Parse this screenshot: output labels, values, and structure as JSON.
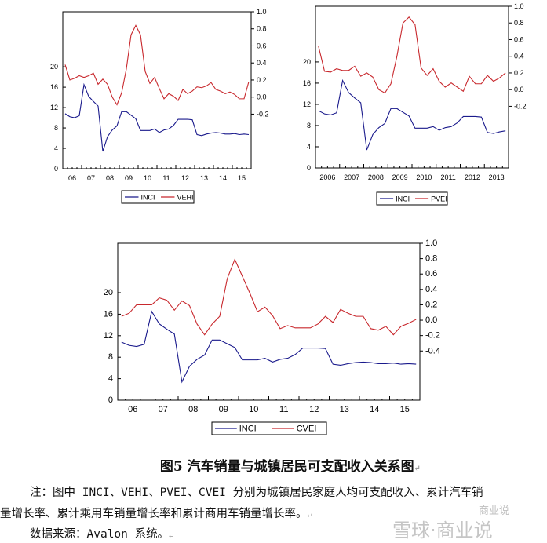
{
  "colors": {
    "inci": "#1a1a8c",
    "other": "#c8282d"
  },
  "chart_data": [
    {
      "type": "line",
      "x_start": "2006Q1",
      "frequency": "quarterly",
      "xtick_labels": [
        "06",
        "07",
        "08",
        "09",
        "10",
        "11",
        "12",
        "13",
        "14",
        "15"
      ],
      "left_ylim": [
        0,
        30.8
      ],
      "left_ticks": [
        "0",
        "4",
        "8",
        "12",
        "16",
        "20"
      ],
      "right_ylim": [
        -0.84,
        1.0
      ],
      "right_ticks": [
        "-0.2",
        "0.0",
        "0.2",
        "0.4",
        "0.6",
        "0.8",
        "1.0"
      ],
      "legend_placement": "bottom",
      "grid": false,
      "series": [
        {
          "name": "INCI",
          "axis": "left",
          "values": [
            10.8,
            10.2,
            10.0,
            10.4,
            16.5,
            14.2,
            13.2,
            12.3,
            3.4,
            6.3,
            7.6,
            8.4,
            11.2,
            11.2,
            10.5,
            9.8,
            7.5,
            7.5,
            7.5,
            7.8,
            7.1,
            7.6,
            7.8,
            8.5,
            9.7,
            9.7,
            9.7,
            9.6,
            6.7,
            6.5,
            6.8,
            7.0,
            7.1,
            7.0,
            6.8,
            6.8,
            6.9,
            6.7,
            6.8,
            6.7
          ]
        },
        {
          "name": "VEHI",
          "axis": "right",
          "values": [
            0.38,
            0.2,
            0.22,
            0.25,
            0.23,
            0.25,
            0.28,
            0.15,
            0.21,
            0.15,
            0.0,
            -0.09,
            0.05,
            0.33,
            0.73,
            0.84,
            0.73,
            0.3,
            0.16,
            0.23,
            0.1,
            -0.02,
            0.04,
            0.01,
            -0.04,
            0.09,
            0.04,
            0.07,
            0.12,
            0.11,
            0.13,
            0.17,
            0.09,
            0.07,
            0.04,
            0.06,
            0.03,
            -0.02,
            -0.02,
            0.18
          ]
        }
      ]
    },
    {
      "type": "line",
      "x_start": "2006Q1",
      "frequency": "quarterly",
      "xtick_labels": [
        "2006",
        "2007",
        "2008",
        "2009",
        "2010",
        "2011",
        "2012",
        "2013"
      ],
      "left_ylim": [
        0,
        30.5
      ],
      "left_ticks": [
        "0",
        "4",
        "8",
        "12",
        "16",
        "20"
      ],
      "right_ylim": [
        -0.94,
        1.0
      ],
      "right_ticks": [
        "-0.2",
        "0.0",
        "0.2",
        "0.4",
        "0.6",
        "0.8",
        "1.0"
      ],
      "legend_placement": "bottom",
      "grid": false,
      "series": [
        {
          "name": "INCI",
          "axis": "left",
          "values": [
            10.8,
            10.2,
            10.0,
            10.4,
            16.5,
            14.2,
            13.2,
            12.3,
            3.4,
            6.3,
            7.6,
            8.4,
            11.2,
            11.2,
            10.5,
            9.8,
            7.5,
            7.5,
            7.5,
            7.8,
            7.1,
            7.6,
            7.8,
            8.5,
            9.7,
            9.7,
            9.7,
            9.6,
            6.7,
            6.5,
            6.8,
            7.0
          ]
        },
        {
          "name": "PVEI",
          "axis": "right",
          "values": [
            0.52,
            0.22,
            0.21,
            0.25,
            0.23,
            0.23,
            0.28,
            0.16,
            0.2,
            0.15,
            0.0,
            -0.04,
            0.07,
            0.4,
            0.8,
            0.87,
            0.78,
            0.26,
            0.17,
            0.25,
            0.1,
            0.03,
            0.08,
            0.03,
            -0.02,
            0.16,
            0.07,
            0.07,
            0.17,
            0.1,
            0.14,
            0.2
          ]
        }
      ]
    },
    {
      "type": "line",
      "x_start": "2006Q1",
      "frequency": "quarterly",
      "xtick_labels": [
        "06",
        "07",
        "08",
        "09",
        "10",
        "11",
        "12",
        "13",
        "14",
        "15"
      ],
      "left_ylim": [
        0,
        29.2
      ],
      "left_ticks": [
        "0",
        "4",
        "8",
        "12",
        "16",
        "20"
      ],
      "right_ylim": [
        -1.04,
        1.0
      ],
      "right_ticks": [
        "-0.4",
        "-0.2",
        "0.0",
        "0.2",
        "0.4",
        "0.6",
        "0.8",
        "1.0"
      ],
      "legend_placement": "bottom",
      "grid": false,
      "series": [
        {
          "name": "INCI",
          "axis": "left",
          "values": [
            10.8,
            10.2,
            10.0,
            10.4,
            16.5,
            14.2,
            13.2,
            12.3,
            3.4,
            6.3,
            7.6,
            8.4,
            11.2,
            11.2,
            10.5,
            9.8,
            7.5,
            7.5,
            7.5,
            7.8,
            7.1,
            7.6,
            7.8,
            8.5,
            9.7,
            9.7,
            9.7,
            9.6,
            6.7,
            6.5,
            6.8,
            7.0,
            7.1,
            7.0,
            6.8,
            6.8,
            6.9,
            6.7,
            6.8,
            6.7
          ]
        },
        {
          "name": "CVEI",
          "axis": "right",
          "values": [
            0.05,
            0.09,
            0.2,
            0.2,
            0.2,
            0.29,
            0.26,
            0.13,
            0.25,
            0.19,
            -0.05,
            -0.19,
            -0.05,
            0.05,
            0.54,
            0.79,
            0.57,
            0.35,
            0.11,
            0.17,
            0.06,
            -0.11,
            -0.07,
            -0.1,
            -0.1,
            -0.1,
            -0.05,
            0.05,
            -0.03,
            0.14,
            0.09,
            0.05,
            0.05,
            -0.11,
            -0.13,
            -0.08,
            -0.19,
            -0.08,
            -0.04,
            0.01
          ]
        }
      ]
    }
  ],
  "caption": "图5 汽车销量与城镇居民可支配收入关系图",
  "note_line1": "注：图中 INCI、VEHI、PVEI、CVEI 分别为城镇居民家庭人均可支配收入、累计汽车销",
  "note_line2": "量增长率、累计乘用车销量增长率和累计商用车销量增长率。",
  "source": "数据来源：Avalon 系统。",
  "paragraph_mark": "↵",
  "watermark": "雪球·商业说",
  "watermark_small": "商业说"
}
